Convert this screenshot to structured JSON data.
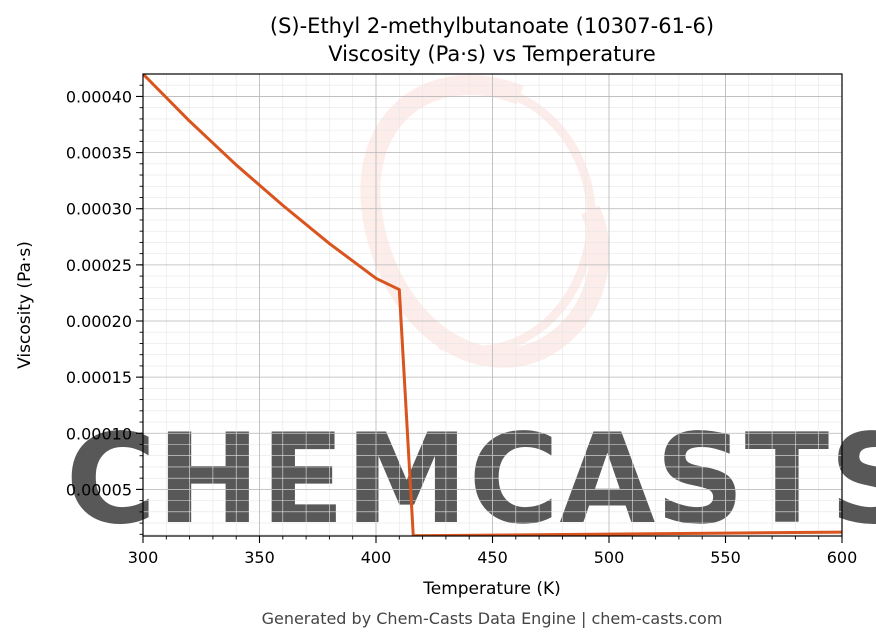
{
  "chart_data": {
    "type": "line",
    "title": "(S)-Ethyl 2-methylbutanoate (10307-61-6)",
    "subtitle": "Viscosity (Pa·s) vs Temperature",
    "xlabel": "Temperature (K)",
    "ylabel": "Viscosity (Pa·s)",
    "xlim": [
      300,
      600
    ],
    "ylim": [
      8.5e-06,
      0.00042
    ],
    "x_ticks": [
      300,
      350,
      400,
      450,
      500,
      550,
      600
    ],
    "x_tick_labels": [
      "300",
      "350",
      "400",
      "450",
      "500",
      "550",
      "600"
    ],
    "y_ticks": [
      5e-05,
      0.0001,
      0.00015,
      0.0002,
      0.00025,
      0.0003,
      0.00035,
      0.0004
    ],
    "y_tick_labels": [
      "0.00005",
      "0.00010",
      "0.00015",
      "0.00020",
      "0.00025",
      "0.00030",
      "0.00035",
      "0.00040"
    ],
    "grid": true,
    "series": [
      {
        "color": "#d9541e",
        "x": [
          300,
          320,
          340,
          360,
          380,
          400,
          410,
          416,
          416.5,
          450,
          500,
          550,
          600
        ],
        "y": [
          0.00042,
          0.000378,
          0.000339,
          0.000303,
          0.000269,
          0.000238,
          0.000228,
          8.5e-06,
          8.7e-06,
          9.3e-06,
          1.02e-05,
          1.11e-05,
          1.2e-05
        ]
      }
    ]
  },
  "watermark": {
    "text": "CHEMCASTS",
    "color": "#fde0d9"
  },
  "footer": "Generated by Chem-Casts Data Engine | chem-casts.com"
}
